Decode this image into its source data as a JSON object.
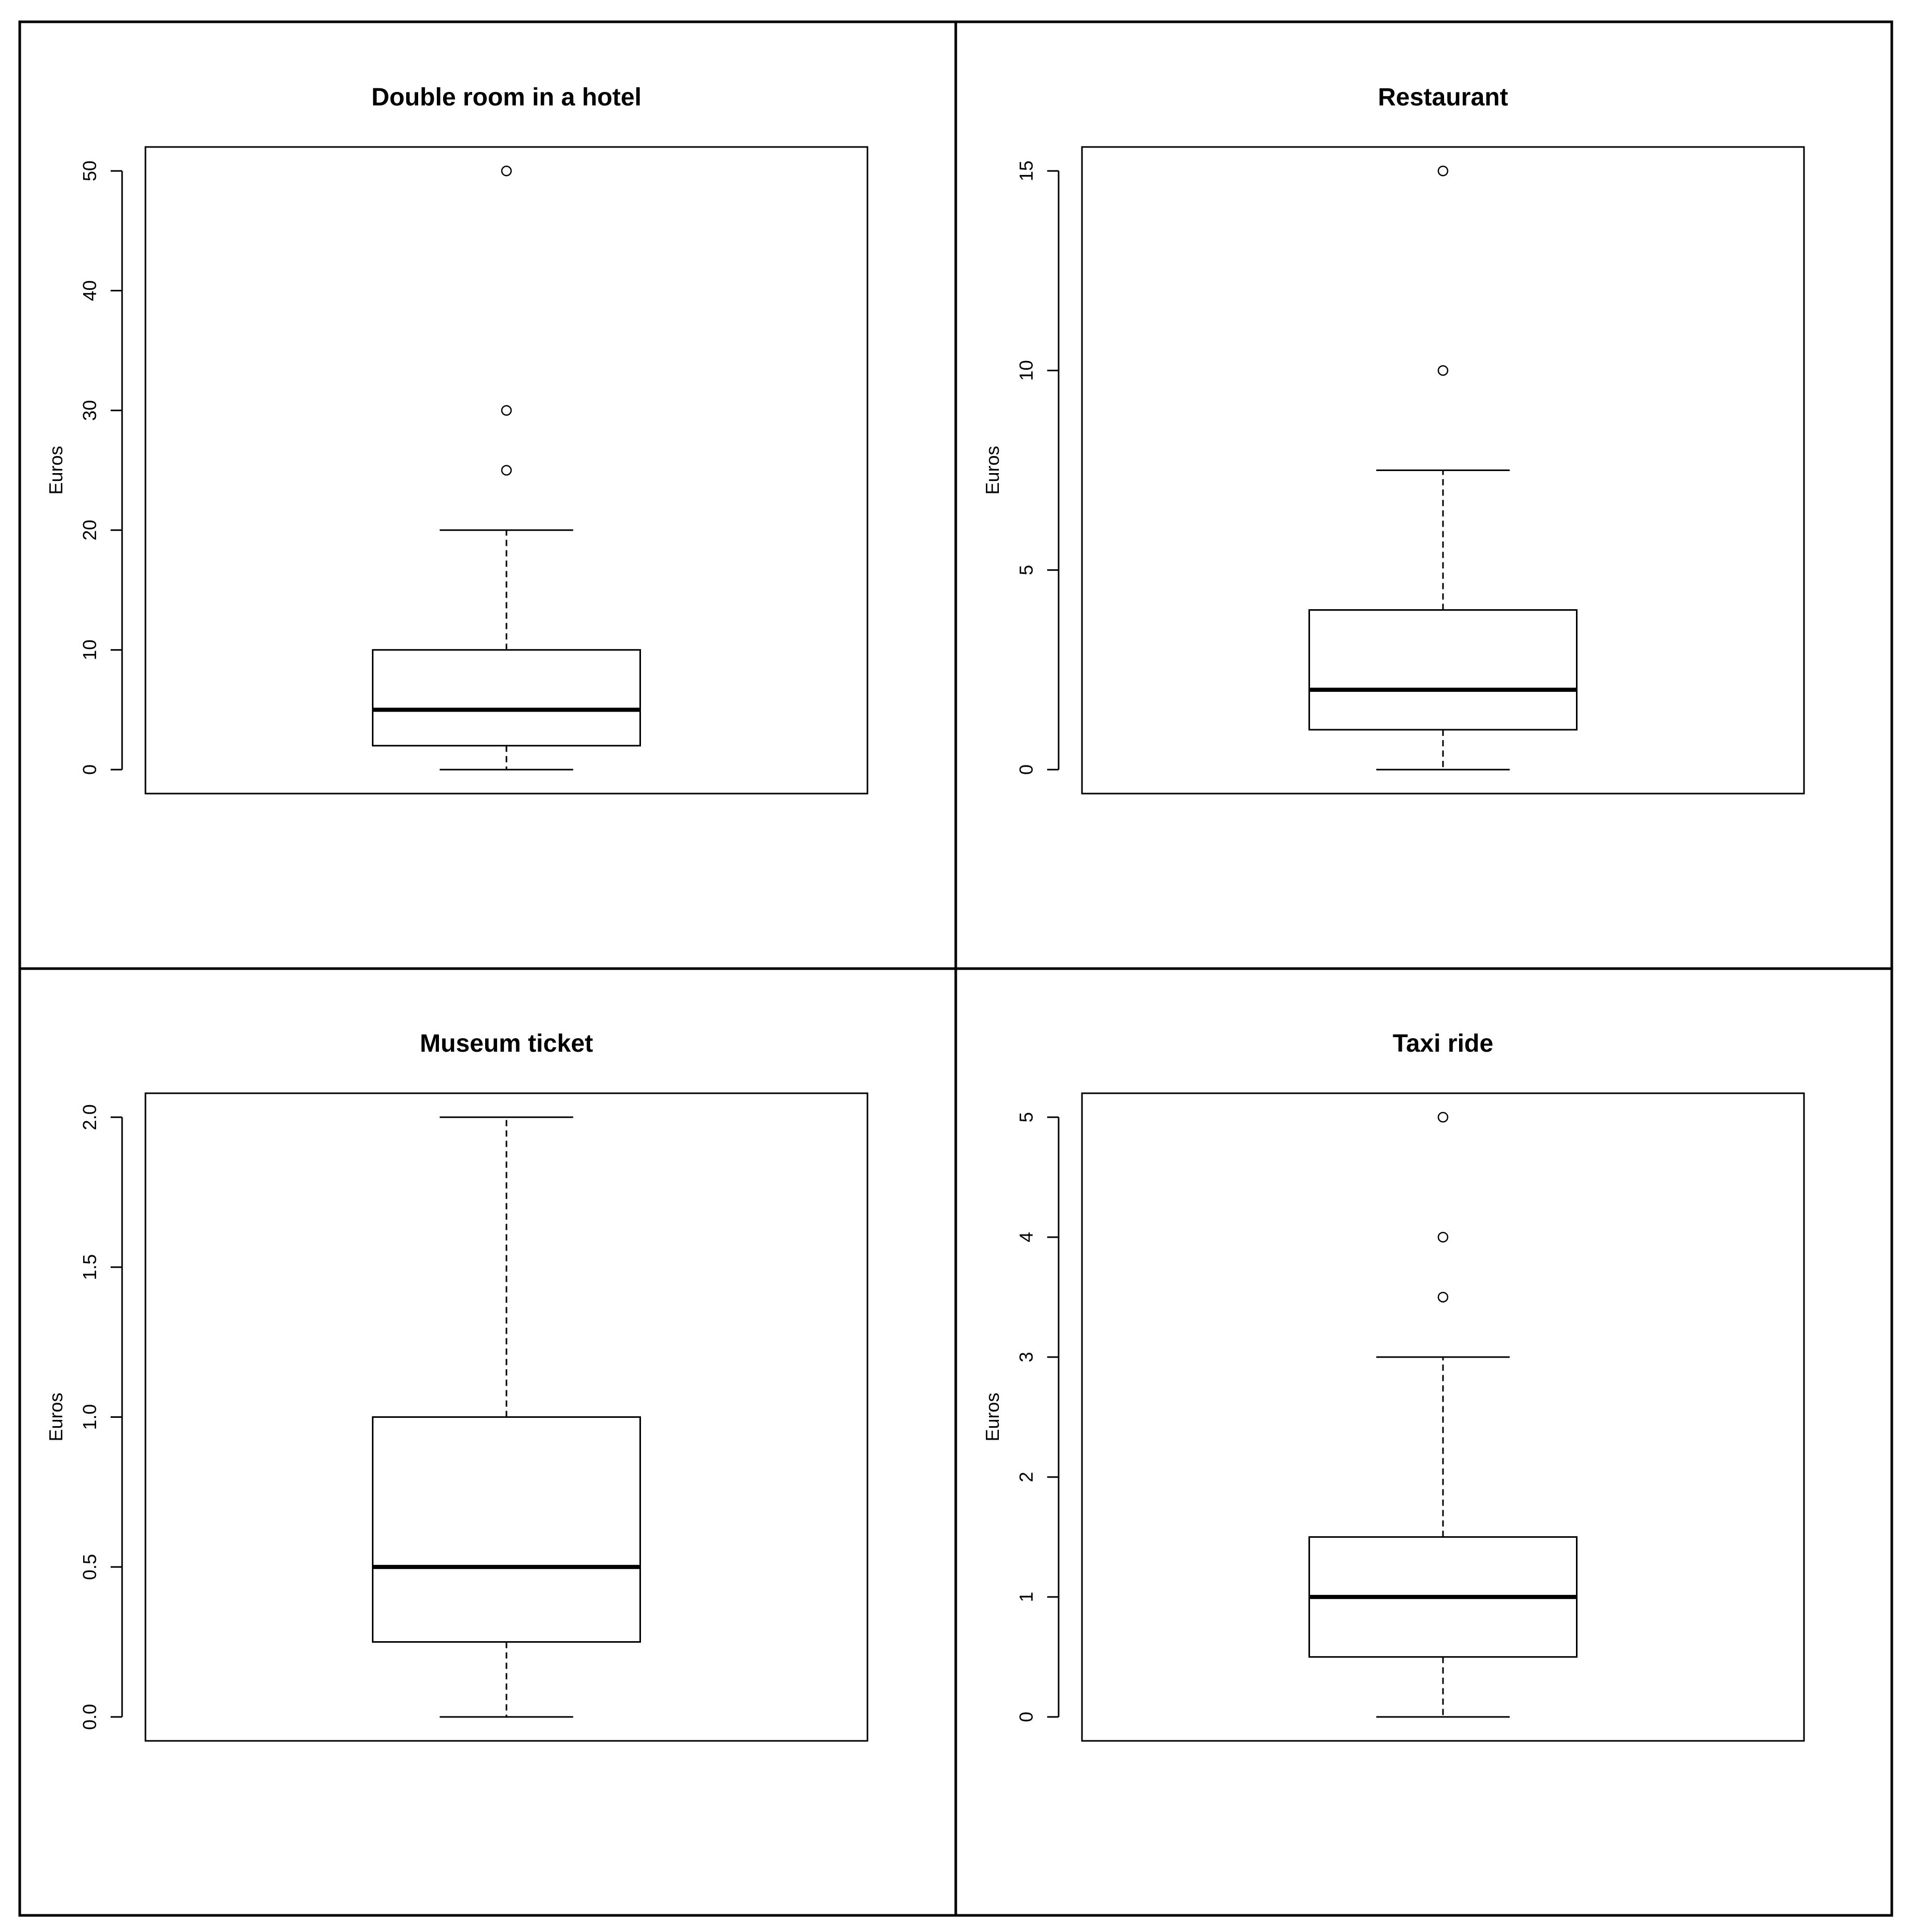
{
  "chart_data": [
    {
      "type": "box",
      "title": "Double room in a hotel",
      "xlabel": "",
      "ylabel": "Euros",
      "ylim": [
        -2,
        52
      ],
      "yticks": [
        0,
        10,
        20,
        30,
        40,
        50
      ],
      "ytick_labels": [
        "0",
        "10",
        "20",
        "30",
        "40",
        "50"
      ],
      "box": {
        "whisker_low": 0,
        "q1": 2,
        "median": 5,
        "q3": 10,
        "whisker_high": 20
      },
      "outliers": [
        25,
        30,
        50
      ]
    },
    {
      "type": "box",
      "title": "Restaurant",
      "xlabel": "",
      "ylabel": "Euros",
      "ylim": [
        -0.6,
        15.6
      ],
      "yticks": [
        0,
        5,
        10,
        15
      ],
      "ytick_labels": [
        "0",
        "5",
        "10",
        "15"
      ],
      "box": {
        "whisker_low": 0,
        "q1": 1,
        "median": 2,
        "q3": 4,
        "whisker_high": 7.5
      },
      "outliers": [
        10,
        15
      ]
    },
    {
      "type": "box",
      "title": "Museum ticket",
      "xlabel": "",
      "ylabel": "Euros",
      "ylim": [
        -0.08,
        2.08
      ],
      "yticks": [
        0,
        0.5,
        1,
        1.5,
        2
      ],
      "ytick_labels": [
        "0.0",
        "0.5",
        "1.0",
        "1.5",
        "2.0"
      ],
      "box": {
        "whisker_low": 0,
        "q1": 0.25,
        "median": 0.5,
        "q3": 1,
        "whisker_high": 2
      },
      "outliers": []
    },
    {
      "type": "box",
      "title": "Taxi ride",
      "xlabel": "",
      "ylabel": "Euros",
      "ylim": [
        -0.2,
        5.2
      ],
      "yticks": [
        0,
        1,
        2,
        3,
        4,
        5
      ],
      "ytick_labels": [
        "0",
        "1",
        "2",
        "3",
        "4",
        "5"
      ],
      "box": {
        "whisker_low": 0,
        "q1": 0.5,
        "median": 1,
        "q3": 1.5,
        "whisker_high": 3
      },
      "outliers": [
        3.5,
        4,
        5
      ]
    }
  ]
}
